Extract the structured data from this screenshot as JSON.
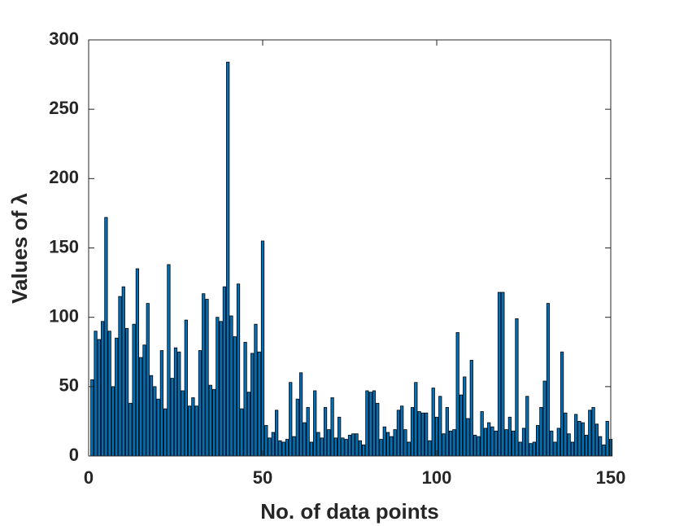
{
  "chart_data": {
    "type": "bar",
    "xlabel": "No. of data points",
    "ylabel": "Values of λ",
    "color": "#0072bd",
    "edgecolor": "#000000",
    "x": [
      1,
      2,
      3,
      4,
      5,
      6,
      7,
      8,
      9,
      10,
      11,
      12,
      13,
      14,
      15,
      16,
      17,
      18,
      19,
      20,
      21,
      22,
      23,
      24,
      25,
      26,
      27,
      28,
      29,
      30,
      31,
      32,
      33,
      34,
      35,
      36,
      37,
      38,
      39,
      40,
      41,
      42,
      43,
      44,
      45,
      46,
      47,
      48,
      49,
      50,
      51,
      52,
      53,
      54,
      55,
      56,
      57,
      58,
      59,
      60,
      61,
      62,
      63,
      64,
      65,
      66,
      67,
      68,
      69,
      70,
      71,
      72,
      73,
      74,
      75,
      76,
      77,
      78,
      79,
      80,
      81,
      82,
      83,
      84,
      85,
      86,
      87,
      88,
      89,
      90,
      91,
      92,
      93,
      94,
      95,
      96,
      97,
      98,
      99,
      100,
      101,
      102,
      103,
      104,
      105,
      106,
      107,
      108,
      109,
      110,
      111,
      112,
      113,
      114,
      115,
      116,
      117,
      118,
      119,
      120,
      121,
      122,
      123,
      124,
      125,
      126,
      127,
      128,
      129,
      130,
      131,
      132,
      133,
      134,
      135,
      136,
      137,
      138,
      139,
      140,
      141,
      142,
      143,
      144,
      145,
      146,
      147,
      148,
      149,
      150
    ],
    "values": [
      55,
      90,
      84,
      97,
      172,
      90,
      50,
      85,
      115,
      122,
      92,
      38,
      95,
      135,
      71,
      80,
      110,
      58,
      50,
      41,
      76,
      34,
      138,
      56,
      78,
      75,
      47,
      98,
      36,
      42,
      36,
      76,
      117,
      113,
      51,
      48,
      100,
      97,
      122,
      284,
      101,
      86,
      124,
      34,
      82,
      46,
      74,
      95,
      75,
      155,
      22,
      13,
      17,
      33,
      11,
      10,
      12,
      53,
      14,
      41,
      60,
      24,
      35,
      10,
      47,
      17,
      13,
      35,
      19,
      42,
      13,
      28,
      13,
      12,
      15,
      16,
      16,
      11,
      8,
      47,
      46,
      47,
      38,
      12,
      21,
      17,
      14,
      19,
      33,
      36,
      19,
      10,
      35,
      53,
      32,
      31,
      31,
      11,
      49,
      28,
      43,
      16,
      35,
      18,
      19,
      89,
      44,
      57,
      27,
      69,
      15,
      14,
      32,
      20,
      24,
      21,
      18,
      118,
      118,
      19,
      28,
      18,
      99,
      10,
      20,
      43,
      9,
      10,
      22,
      35,
      54,
      110,
      18,
      10,
      20,
      75,
      31,
      16,
      10,
      30,
      25,
      24,
      15,
      33,
      35,
      23,
      14,
      8,
      25,
      12
    ],
    "xlim": [
      0,
      150
    ],
    "xticks": [
      0,
      50,
      100,
      150
    ],
    "ylim": [
      0,
      300
    ],
    "yticks": [
      0,
      50,
      100,
      150,
      200,
      250,
      300
    ]
  }
}
